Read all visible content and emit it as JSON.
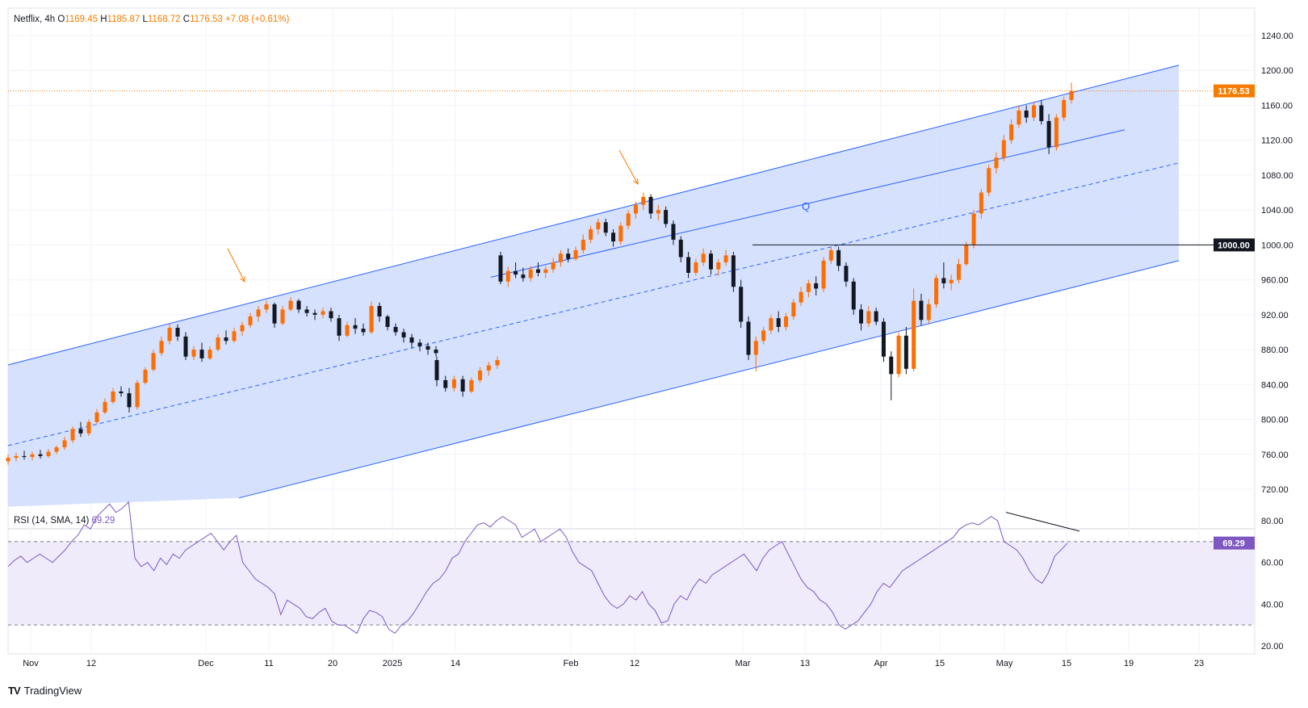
{
  "legend": {
    "symbol": "Netflix",
    "interval": "4h",
    "o_label": "O",
    "open": "1169.45",
    "h_label": "H",
    "high": "1185.87",
    "l_label": "L",
    "low": "1168.72",
    "c_label": "C",
    "close": "1176.53",
    "change": "+7.08 (+0.61%)"
  },
  "rsi_legend": {
    "label": "RSI (14, SMA, 14)",
    "value": "69.29"
  },
  "brand": {
    "logo": "TV",
    "name": "TradingView"
  },
  "colors": {
    "up": "#ff6d00",
    "down": "#131722",
    "channel_fill": "#d0defd",
    "channel_line": "#2962ff",
    "rsi_line": "#7e57c2",
    "rsi_band": "#efebfb",
    "price_tag": "#f57c00",
    "arrow": "#f57c00"
  },
  "chart_data": [
    {
      "type": "candlestick",
      "title": "Netflix, 4h",
      "ylim": [
        700,
        1260
      ],
      "y_ticks": [
        "1240.00",
        "1200.00",
        "1160.00",
        "1120.00",
        "1080.00",
        "1040.00",
        "1000.00",
        "960.00",
        "920.00",
        "880.00",
        "840.00",
        "800.00",
        "760.00",
        "720.00"
      ],
      "x_ticks": [
        "Nov",
        "12",
        "Dec",
        "11",
        "20",
        "2025",
        "14",
        "Feb",
        "12",
        "Mar",
        "13",
        "Apr",
        "15",
        "May",
        "15",
        "19",
        "23"
      ],
      "last_price": "1176.53",
      "level_label": "1000.00",
      "level": 1000,
      "channel_label": "Q",
      "ohlc_segments": [
        [
          [
            752,
            760,
            748,
            756
          ],
          [
            756,
            762,
            752,
            758
          ],
          [
            758,
            764,
            754,
            757
          ],
          [
            757,
            763,
            753,
            760
          ],
          [
            760,
            765,
            755,
            758
          ],
          [
            758,
            766,
            756,
            763
          ],
          [
            763,
            770,
            760,
            768
          ],
          [
            768,
            780,
            765,
            776
          ],
          [
            776,
            792,
            773,
            789
          ],
          [
            789,
            797,
            780,
            784
          ],
          [
            784,
            800,
            781,
            797
          ],
          [
            797,
            812,
            795,
            808
          ],
          [
            808,
            824,
            806,
            820
          ],
          [
            820,
            836,
            818,
            832
          ],
          [
            832,
            838,
            826,
            830
          ],
          [
            830,
            836,
            808,
            814
          ],
          [
            814,
            845,
            811,
            842
          ],
          [
            842,
            860,
            840,
            857
          ],
          [
            857,
            880,
            855,
            876
          ],
          [
            876,
            895,
            873,
            890
          ],
          [
            890,
            910,
            886,
            905
          ],
          [
            905,
            909,
            890,
            895
          ],
          [
            895,
            900,
            868,
            872
          ],
          [
            872,
            884,
            868,
            880
          ],
          [
            880,
            888,
            866,
            870
          ],
          [
            870,
            884,
            868,
            880
          ],
          [
            880,
            898,
            878,
            894
          ],
          [
            894,
            902,
            886,
            890
          ],
          [
            890,
            905,
            888,
            901
          ],
          [
            901,
            912,
            896,
            908
          ],
          [
            908,
            922,
            905,
            918
          ],
          [
            918,
            930,
            912,
            926
          ],
          [
            926,
            936,
            922,
            932
          ],
          [
            932,
            934,
            905,
            910
          ],
          [
            910,
            930,
            908,
            926
          ],
          [
            926,
            940,
            924,
            936
          ],
          [
            936,
            938,
            922,
            926
          ],
          [
            926,
            930,
            918,
            922
          ],
          [
            922,
            926,
            914,
            920
          ],
          [
            920,
            928,
            916,
            924
          ],
          [
            924,
            928,
            912,
            916
          ],
          [
            916,
            920,
            890,
            896
          ],
          [
            896,
            912,
            894,
            908
          ],
          [
            908,
            916,
            898,
            904
          ],
          [
            904,
            910,
            896,
            900
          ],
          [
            900,
            935,
            898,
            930
          ],
          [
            930,
            934,
            912,
            918
          ],
          [
            918,
            920,
            902,
            906
          ],
          [
            906,
            910,
            896,
            900
          ],
          [
            900,
            904,
            888,
            894
          ],
          [
            894,
            898,
            882,
            888
          ],
          [
            888,
            892,
            878,
            884
          ],
          [
            884,
            888,
            874,
            880
          ],
          [
            880,
            884,
            872,
            876
          ]
        ],
        [
          [
            868,
            872,
            838,
            845
          ],
          [
            845,
            850,
            832,
            836
          ],
          [
            836,
            850,
            832,
            846
          ],
          [
            846,
            850,
            826,
            832
          ],
          [
            832,
            848,
            830,
            845
          ],
          [
            845,
            860,
            842,
            856
          ],
          [
            856,
            866,
            850,
            862
          ],
          [
            862,
            872,
            858,
            868
          ]
        ],
        [
          [
            988,
            992,
            955,
            958
          ],
          [
            958,
            975,
            952,
            970
          ],
          [
            970,
            980,
            962,
            966
          ],
          [
            966,
            974,
            958,
            962
          ],
          [
            962,
            976,
            958,
            972
          ],
          [
            972,
            980,
            964,
            968
          ],
          [
            968,
            976,
            962,
            972
          ],
          [
            972,
            985,
            968,
            980
          ],
          [
            980,
            994,
            975,
            990
          ],
          [
            990,
            996,
            980,
            984
          ],
          [
            984,
            998,
            982,
            994
          ],
          [
            994,
            1012,
            990,
            1006
          ],
          [
            1006,
            1022,
            1002,
            1018
          ],
          [
            1018,
            1030,
            1012,
            1026
          ],
          [
            1026,
            1030,
            1010,
            1014
          ],
          [
            1014,
            1018,
            998,
            1004
          ],
          [
            1004,
            1026,
            1000,
            1022
          ],
          [
            1022,
            1040,
            1018,
            1036
          ],
          [
            1036,
            1050,
            1030,
            1046
          ],
          [
            1046,
            1060,
            1040,
            1055
          ],
          [
            1055,
            1058,
            1030,
            1036
          ],
          [
            1036,
            1046,
            1028,
            1040
          ],
          [
            1040,
            1044,
            1020,
            1024
          ],
          [
            1024,
            1028,
            1000,
            1006
          ],
          [
            1006,
            1010,
            980,
            986
          ],
          [
            986,
            992,
            962,
            968
          ],
          [
            968,
            984,
            965,
            980
          ],
          [
            980,
            996,
            976,
            990
          ],
          [
            990,
            994,
            966,
            972
          ],
          [
            972,
            984,
            965,
            980
          ],
          [
            980,
            994,
            976,
            988
          ],
          [
            988,
            992,
            946,
            952
          ],
          [
            952,
            960,
            905,
            912
          ],
          [
            912,
            918,
            868,
            874
          ],
          [
            874,
            895,
            855,
            890
          ],
          [
            890,
            906,
            886,
            902
          ],
          [
            902,
            920,
            898,
            916
          ],
          [
            916,
            924,
            900,
            906
          ],
          [
            906,
            922,
            902,
            918
          ],
          [
            918,
            938,
            914,
            934
          ],
          [
            934,
            952,
            930,
            946
          ],
          [
            946,
            960,
            940,
            956
          ],
          [
            956,
            964,
            942,
            950
          ],
          [
            950,
            986,
            946,
            982
          ],
          [
            982,
            998,
            978,
            994
          ],
          [
            994,
            998,
            970,
            976
          ],
          [
            976,
            980,
            952,
            958
          ],
          [
            958,
            962,
            920,
            926
          ],
          [
            926,
            932,
            902,
            910
          ],
          [
            910,
            930,
            906,
            924
          ],
          [
            924,
            928,
            908,
            912
          ],
          [
            912,
            916,
            866,
            872
          ],
          [
            872,
            878,
            822,
            852
          ],
          [
            852,
            900,
            848,
            896
          ],
          [
            896,
            906,
            852,
            858
          ],
          [
            858,
            950,
            855,
            936
          ],
          [
            936,
            944,
            908,
            914
          ],
          [
            914,
            938,
            910,
            932
          ],
          [
            932,
            966,
            928,
            962
          ],
          [
            962,
            980,
            950,
            956
          ],
          [
            956,
            966,
            948,
            960
          ],
          [
            960,
            984,
            956,
            978
          ],
          [
            978,
            1004,
            976,
            1000
          ],
          [
            1000,
            1040,
            996,
            1036
          ],
          [
            1036,
            1064,
            1030,
            1060
          ],
          [
            1060,
            1092,
            1056,
            1088
          ],
          [
            1088,
            1106,
            1082,
            1100
          ],
          [
            1100,
            1126,
            1096,
            1120
          ],
          [
            1120,
            1144,
            1116,
            1138
          ],
          [
            1138,
            1160,
            1134,
            1154
          ],
          [
            1154,
            1160,
            1140,
            1146
          ],
          [
            1146,
            1164,
            1142,
            1160
          ],
          [
            1160,
            1166,
            1138,
            1142
          ],
          [
            1142,
            1150,
            1104,
            1112
          ],
          [
            1112,
            1150,
            1108,
            1146
          ],
          [
            1146,
            1170,
            1142,
            1166
          ],
          [
            1166,
            1186,
            1162,
            1176.53
          ]
        ]
      ]
    },
    {
      "type": "line",
      "title": "RSI (14, SMA, 14)",
      "ylim": [
        15,
        95
      ],
      "y_ticks": [
        "80.00",
        "60.00",
        "40.00",
        "20.00"
      ],
      "bands": [
        70,
        30
      ],
      "last_value": "69.29",
      "series": [
        {
          "values": [
            58,
            61,
            63,
            60,
            62,
            64,
            62,
            60,
            63,
            66,
            70,
            73,
            78,
            76,
            82,
            85,
            88,
            84,
            86,
            89,
            62,
            58,
            60,
            56,
            62,
            59,
            64,
            62,
            66,
            68,
            70,
            72,
            74,
            70,
            66,
            70,
            73,
            60,
            56,
            52,
            50,
            48,
            45,
            35,
            42,
            40,
            38,
            34,
            33,
            36,
            38,
            32,
            30,
            30,
            28,
            26,
            33,
            37,
            36,
            34,
            28,
            26,
            30,
            32,
            36,
            41,
            46,
            50,
            52,
            56,
            62,
            64,
            70,
            74,
            78,
            79,
            77,
            80,
            82,
            80,
            78,
            72,
            74,
            76,
            70,
            72,
            74,
            76,
            72,
            65,
            60,
            58,
            56,
            50,
            44,
            40,
            38,
            40,
            44,
            42,
            46,
            40,
            37,
            31,
            32,
            40,
            44,
            42,
            48,
            52,
            50,
            54,
            56,
            58,
            60,
            62,
            64,
            60,
            56,
            62,
            66,
            68,
            70,
            64,
            58,
            52,
            48,
            46,
            42,
            40,
            36,
            30,
            28,
            30,
            32,
            36,
            40,
            46,
            50,
            48,
            52,
            56,
            58,
            60,
            62,
            64,
            66,
            68,
            70,
            72,
            76,
            78,
            79,
            78,
            80,
            82,
            80,
            70,
            68,
            66,
            62,
            56,
            52,
            50,
            55,
            63,
            66,
            69.29
          ]
        }
      ]
    }
  ]
}
